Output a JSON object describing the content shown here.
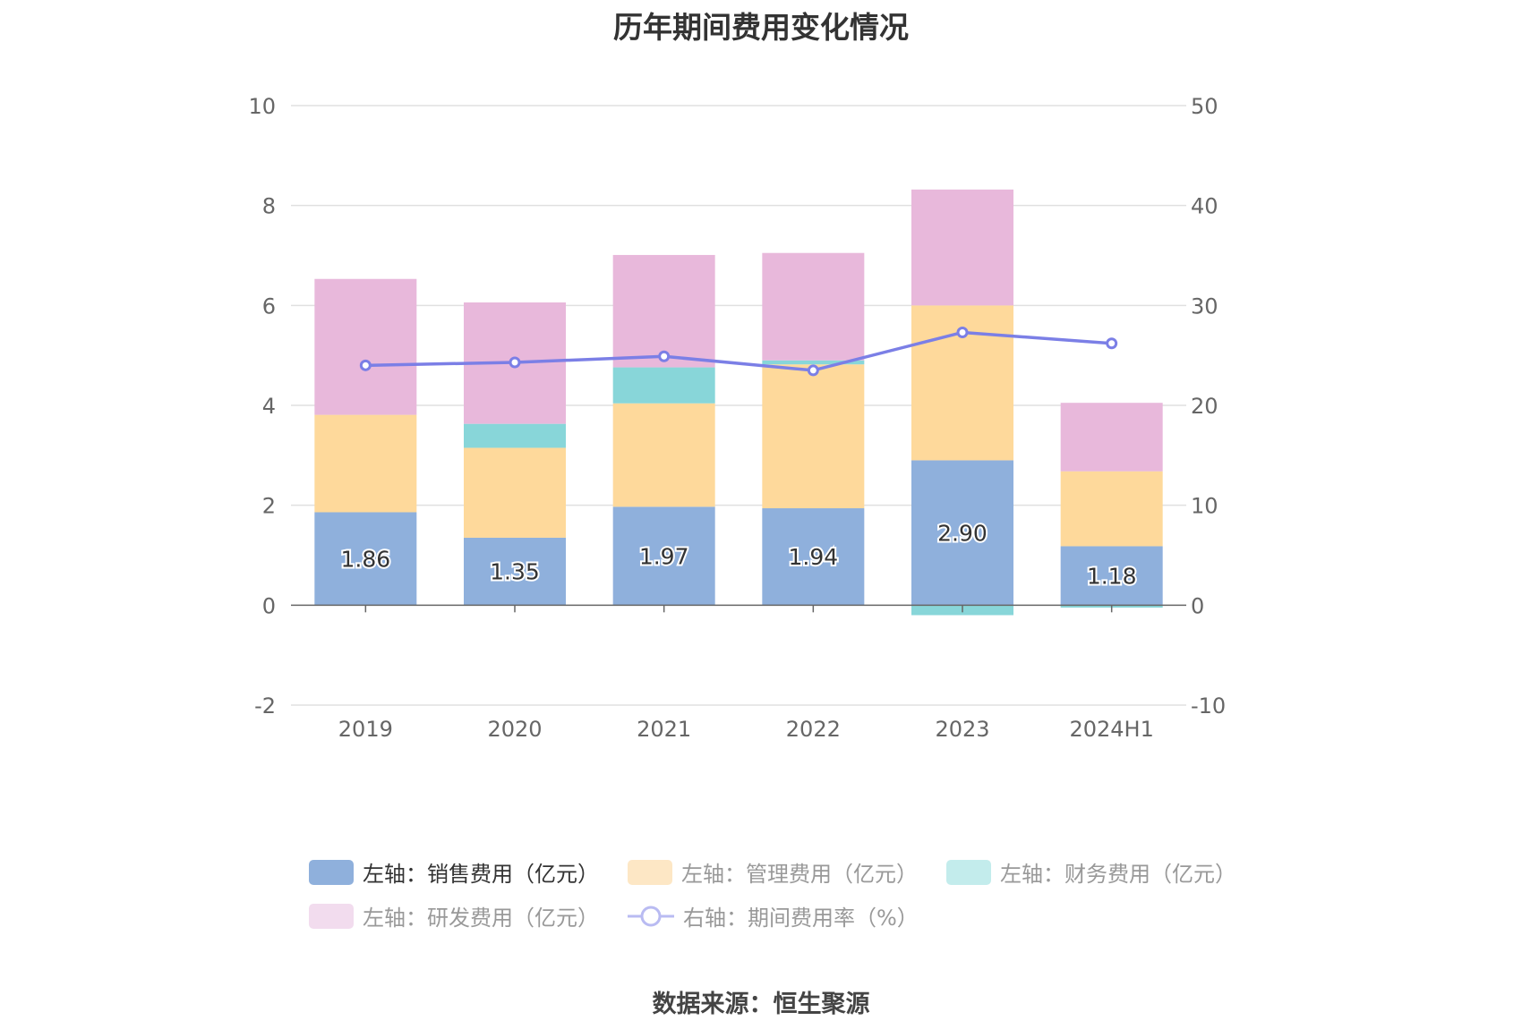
{
  "title": "历年期间费用变化情况",
  "source": "数据来源：恒生聚源",
  "colors": {
    "sales": "#8fb0dc",
    "admin": "#fed99b",
    "finance": "#88d6d9",
    "rd": "#e8b8db",
    "rate": "#7b7fe6",
    "axis_text": "#666666",
    "grid": "#e0e0e0"
  },
  "legend": [
    {
      "key": "sales",
      "label": "左轴：销售费用（亿元）",
      "type": "bar",
      "color": "#8fb0dc",
      "active": true
    },
    {
      "key": "admin",
      "label": "左轴：管理费用（亿元）",
      "type": "bar",
      "color": "#fde7c5",
      "active": false
    },
    {
      "key": "finance",
      "label": "左轴：财务费用（亿元）",
      "type": "bar",
      "color": "#c3ecec",
      "active": false
    },
    {
      "key": "rd",
      "label": "左轴：研发费用（亿元）",
      "type": "bar",
      "color": "#f2dcee",
      "active": false
    },
    {
      "key": "rate",
      "label": "右轴：期间费用率（%）",
      "type": "line",
      "color": "#b9bbf2",
      "active": false
    }
  ],
  "chart_data": {
    "type": "bar",
    "stacked": true,
    "categories": [
      "2019",
      "2020",
      "2021",
      "2022",
      "2023",
      "2024H1"
    ],
    "series": [
      {
        "name": "左轴：销售费用（亿元）",
        "axis": "left",
        "values": [
          1.86,
          1.35,
          1.97,
          1.94,
          2.9,
          1.18
        ],
        "labels": [
          "1.86",
          "1.35",
          "1.97",
          "1.94",
          "2.90",
          "1.18"
        ]
      },
      {
        "name": "左轴：管理费用（亿元）",
        "axis": "left",
        "values": [
          1.95,
          1.8,
          2.07,
          2.88,
          3.1,
          1.5
        ]
      },
      {
        "name": "左轴：财务费用（亿元）",
        "axis": "left",
        "values": [
          0.0,
          0.48,
          0.72,
          0.08,
          -0.2,
          -0.05
        ]
      },
      {
        "name": "左轴：研发费用（亿元）",
        "axis": "left",
        "values": [
          2.72,
          2.43,
          2.25,
          2.15,
          2.32,
          1.37
        ]
      },
      {
        "name": "右轴：期间费用率（%）",
        "axis": "right",
        "type": "line",
        "values": [
          24.0,
          24.3,
          24.9,
          23.5,
          27.3,
          26.2
        ]
      }
    ],
    "left_axis": {
      "min": -2,
      "max": 10,
      "ticks": [
        "-2",
        "0",
        "2",
        "4",
        "6",
        "8",
        "10"
      ]
    },
    "right_axis": {
      "min": -10,
      "max": 50,
      "ticks": [
        "-10",
        "0",
        "10",
        "20",
        "30",
        "40",
        "50"
      ]
    },
    "grid": true,
    "legend_position": "bottom"
  }
}
